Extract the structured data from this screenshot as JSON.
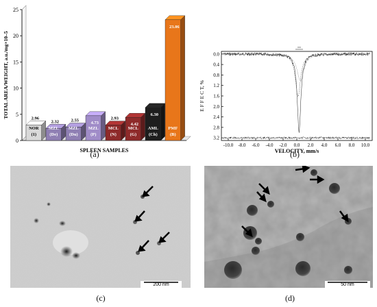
{
  "panels": {
    "a": {
      "caption": "(a)"
    },
    "b": {
      "caption": "(b)"
    },
    "c": {
      "caption": "(c)",
      "scale_bar": "200 nm"
    },
    "d": {
      "caption": "(d)",
      "scale_bar": "50 nm"
    }
  },
  "chart_data": [
    {
      "type": "bar",
      "title": "",
      "xlabel": "SPLEEN SAMPLES",
      "ylabel": "TOTAL AREA/WEIGHT, a.u./mg×10–5",
      "ylim": [
        0,
        25
      ],
      "yticks": [
        "0",
        "5",
        "10",
        "15",
        "20",
        "25"
      ],
      "grid": false,
      "categories": [
        [
          "NOR",
          "(1)"
        ],
        [
          "MZL",
          "(De)"
        ],
        [
          "MZL",
          "(Du)"
        ],
        [
          "MZL",
          "(P)"
        ],
        [
          "MCL",
          "(N)"
        ],
        [
          "MCL",
          "(G)"
        ],
        [
          "AML",
          "(Ch)"
        ],
        [
          "PMF",
          "(B)"
        ]
      ],
      "values": [
        2.96,
        2.32,
        2.55,
        4.73,
        2.93,
        4.42,
        6.3,
        23.06
      ],
      "value_labels": [
        "2.96",
        "2.32",
        "2.55",
        "4.73",
        "2.93",
        "4.42",
        "6.30",
        "23.06"
      ],
      "colors": [
        "#d9d9d9",
        "#8f7fb3",
        "#8f7fb3",
        "#a08cc8",
        "#8e2a2a",
        "#8e2a2a",
        "#1e1e1e",
        "#e8761a"
      ]
    },
    {
      "type": "line",
      "title": "",
      "xlabel": "VELOCITY, mm/s",
      "ylabel": "E F F E C T, %",
      "xlim": [
        -11,
        11
      ],
      "ylim": [
        -0.1,
        3.3
      ],
      "xticks": [
        "-10.0",
        "-8.0",
        "-6.0",
        "-4.0",
        "-2.0",
        "0.0",
        "2.0",
        "4.0",
        "6.0",
        "8.0",
        "10.0"
      ],
      "yticks": [
        "0.0",
        "0.4",
        "0.8",
        "1.2",
        "1.6",
        "2.0",
        "2.4",
        "2.8",
        "3.2"
      ],
      "grid": false,
      "spectrum_depth": 2.95,
      "spectrum_center": 0.33
    }
  ]
}
